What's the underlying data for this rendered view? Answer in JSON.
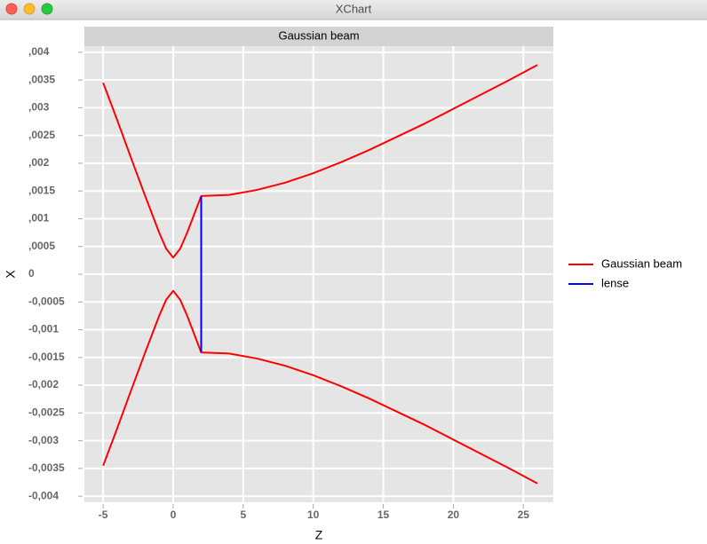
{
  "window_title": "XChart",
  "chart_data": {
    "type": "line",
    "title": "Gaussian beam",
    "xlabel": "Z",
    "ylabel": "X",
    "grid": true,
    "legend": "outside-right",
    "xlim": [
      -6.34,
      27.14
    ],
    "ylim": [
      -0.00411,
      0.00411
    ],
    "xticks": [
      -5,
      0,
      5,
      10,
      15,
      20,
      25
    ],
    "yticks": [
      {
        "value": 0.004,
        "label": ",004"
      },
      {
        "value": 0.0035,
        "label": ",0035"
      },
      {
        "value": 0.003,
        "label": ",003"
      },
      {
        "value": 0.0025,
        "label": ",0025"
      },
      {
        "value": 0.002,
        "label": ",002"
      },
      {
        "value": 0.0015,
        "label": ",0015"
      },
      {
        "value": 0.001,
        "label": ",001"
      },
      {
        "value": 0.0005,
        "label": ",0005"
      },
      0,
      {
        "value": -0.0005,
        "label": "-0,0005"
      },
      {
        "value": -0.001,
        "label": "-0,001"
      },
      {
        "value": -0.0015,
        "label": "-0,0015"
      },
      {
        "value": -0.002,
        "label": "-0,002"
      },
      {
        "value": -0.0025,
        "label": "-0,0025"
      },
      {
        "value": -0.003,
        "label": "-0,003"
      },
      {
        "value": -0.0035,
        "label": "-0,0035"
      },
      {
        "value": -0.004,
        "label": "-0,004"
      }
    ],
    "series": [
      {
        "name": "Gaussian beam",
        "color": "#ff0000",
        "x": [
          -5,
          -4,
          -3,
          -2,
          -1,
          -0.5,
          0,
          0.5,
          1,
          1.5,
          2,
          4,
          6,
          8,
          10,
          12,
          14,
          16,
          18,
          20,
          22,
          24,
          26,
          null,
          -5,
          -4,
          -3,
          -2,
          -1,
          -0.5,
          0,
          0.5,
          1,
          1.5,
          2,
          4,
          6,
          8,
          10,
          12,
          14,
          16,
          18,
          20,
          22,
          24,
          26
        ],
        "values": [
          0.00345,
          0.00278,
          0.00209,
          0.00141,
          0.00075,
          0.00046,
          0.0003,
          0.00046,
          0.00075,
          0.00108,
          0.00141,
          0.00143,
          0.00152,
          0.00165,
          0.00182,
          0.00202,
          0.00224,
          0.00248,
          0.00272,
          0.00298,
          0.00324,
          0.0035,
          0.00377,
          null,
          -0.00345,
          -0.00278,
          -0.00209,
          -0.00141,
          -0.00075,
          -0.00046,
          -0.0003,
          -0.00046,
          -0.00075,
          -0.00108,
          -0.00141,
          -0.00143,
          -0.00152,
          -0.00165,
          -0.00182,
          -0.00202,
          -0.00224,
          -0.00248,
          -0.00272,
          -0.00298,
          -0.00324,
          -0.0035,
          -0.00377
        ]
      },
      {
        "name": "lense",
        "color": "#0000ff",
        "x": [
          2,
          2
        ],
        "values": [
          0.0014,
          -0.0014
        ]
      }
    ]
  }
}
